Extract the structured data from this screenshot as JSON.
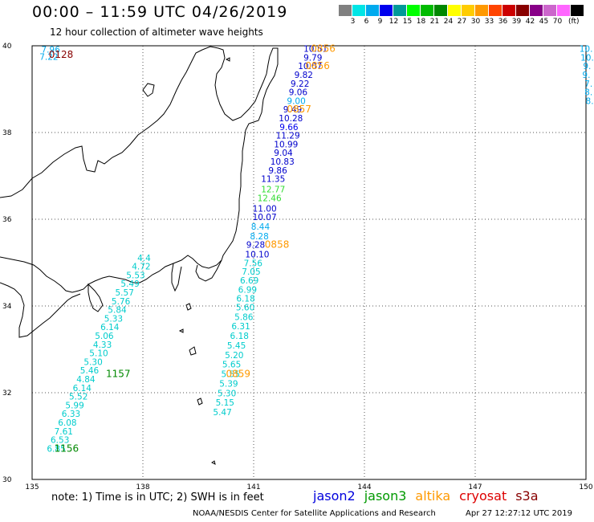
{
  "header": {
    "title": "00:00 – 11:59 UTC 04/26/2019",
    "subtitle": "12 hour collection of altimeter wave heights"
  },
  "legend": {
    "colors": [
      "#808080",
      "#00e5e5",
      "#00aaee",
      "#0000ee",
      "#009999",
      "#00ff00",
      "#00bb00",
      "#008800",
      "#ffff00",
      "#ffcc00",
      "#ff9900",
      "#ff4400",
      "#cc0000",
      "#880000",
      "#880088",
      "#cc66cc",
      "#ff66ff",
      "#000000"
    ],
    "labels": [
      "3",
      "6",
      "9",
      "12",
      "15",
      "18",
      "21",
      "24",
      "27",
      "30",
      "33",
      "36",
      "39",
      "42",
      "45",
      "70"
    ],
    "unit": "(ft)"
  },
  "map": {
    "lon_range": [
      135,
      150
    ],
    "lat_range": [
      30,
      40
    ],
    "lon_ticks": [
      "135",
      "138",
      "141",
      "144",
      "147",
      "150"
    ],
    "lat_ticks": [
      "30",
      "32",
      "34",
      "36",
      "38",
      "40"
    ],
    "grid": true
  },
  "satellite_colors": {
    "jason2": "#0000dd",
    "jason3": "#009900",
    "altika": "#ff9900",
    "cryosat": "#dd0000",
    "s3a": "#880000"
  },
  "tracks": [
    {
      "name": "jason3-0128",
      "color": "#00aaee",
      "time_label": {
        "text": "0128",
        "color": "#880000",
        "lon": 135.45,
        "lat": 39.72
      },
      "points": [
        {
          "v": "7.96",
          "lon": 135.25,
          "lat": 39.84
        },
        {
          "v": "7.22",
          "lon": 135.2,
          "lat": 39.68
        }
      ]
    },
    {
      "name": "east-edge",
      "color": "#00aaee",
      "points": [
        {
          "v": "10.",
          "lon": 149.82,
          "lat": 39.86
        },
        {
          "v": "10.",
          "lon": 149.85,
          "lat": 39.66
        },
        {
          "v": "9.",
          "lon": 149.92,
          "lat": 39.46
        },
        {
          "v": "9.",
          "lon": 149.9,
          "lat": 39.26
        },
        {
          "v": "7.",
          "lon": 149.96,
          "lat": 39.06
        },
        {
          "v": "8.",
          "lon": 149.96,
          "lat": 38.86
        },
        {
          "v": "8.",
          "lon": 149.99,
          "lat": 38.66
        }
      ]
    },
    {
      "name": "altika-north",
      "color": "#0000cc",
      "points": [
        {
          "v": "10.51",
          "lon": 142.35,
          "lat": 39.86
        },
        {
          "v": "9.79",
          "lon": 142.35,
          "lat": 39.66
        },
        {
          "v": "10.07",
          "lon": 142.2,
          "lat": 39.46
        },
        {
          "v": "9.82",
          "lon": 142.1,
          "lat": 39.26
        },
        {
          "v": "9.22",
          "lon": 142.0,
          "lat": 39.06
        },
        {
          "v": "9.06",
          "lon": 141.95,
          "lat": 38.86
        },
        {
          "v": "9.00",
          "lon": 141.9,
          "lat": 38.66
        },
        {
          "v": "9.49",
          "lon": 141.8,
          "lat": 38.46
        },
        {
          "v": "10.28",
          "lon": 141.68,
          "lat": 38.26
        },
        {
          "v": "9.66",
          "lon": 141.7,
          "lat": 38.06
        },
        {
          "v": "11.29",
          "lon": 141.6,
          "lat": 37.86
        },
        {
          "v": "10.99",
          "lon": 141.55,
          "lat": 37.66
        },
        {
          "v": "9.04",
          "lon": 141.55,
          "lat": 37.46
        },
        {
          "v": "10.83",
          "lon": 141.45,
          "lat": 37.26
        },
        {
          "v": "9.86",
          "lon": 141.4,
          "lat": 37.06
        },
        {
          "v": "11.35",
          "lon": 141.2,
          "lat": 36.86
        },
        {
          "v": "12.77",
          "lon": 141.2,
          "lat": 36.62
        },
        {
          "v": "12.46",
          "lon": 141.1,
          "lat": 36.42
        },
        {
          "v": "11.00",
          "lon": 140.97,
          "lat": 36.18
        },
        {
          "v": "10.07",
          "lon": 140.97,
          "lat": 35.98
        },
        {
          "v": "8.44",
          "lon": 140.93,
          "lat": 35.76
        },
        {
          "v": "8.28",
          "lon": 140.9,
          "lat": 35.54
        },
        {
          "v": "9.28",
          "lon": 140.8,
          "lat": 35.34
        },
        {
          "v": "10.10",
          "lon": 140.77,
          "lat": 35.12
        }
      ],
      "colors_by_index": {
        "6": "#00aaee",
        "9": "#0000ee",
        "16": "#33dd33",
        "17": "#33dd33",
        "20": "#00aaee",
        "21": "#00aaee"
      }
    },
    {
      "name": "altika-south",
      "color": "#00cccc",
      "points": [
        {
          "v": "7.56",
          "lon": 140.73,
          "lat": 34.92
        },
        {
          "v": "7.05",
          "lon": 140.68,
          "lat": 34.72
        },
        {
          "v": "6.69",
          "lon": 140.63,
          "lat": 34.52
        },
        {
          "v": "6.99",
          "lon": 140.58,
          "lat": 34.31
        },
        {
          "v": "6.18",
          "lon": 140.53,
          "lat": 34.1
        },
        {
          "v": "5.60",
          "lon": 140.52,
          "lat": 33.9
        },
        {
          "v": "5.86",
          "lon": 140.48,
          "lat": 33.68
        },
        {
          "v": "6.31",
          "lon": 140.4,
          "lat": 33.46
        },
        {
          "v": "6.18",
          "lon": 140.36,
          "lat": 33.24
        },
        {
          "v": "5.45",
          "lon": 140.28,
          "lat": 33.02
        },
        {
          "v": "5.20",
          "lon": 140.22,
          "lat": 32.8
        },
        {
          "v": "5.65",
          "lon": 140.15,
          "lat": 32.58
        },
        {
          "v": "5.55",
          "lon": 140.12,
          "lat": 32.36
        },
        {
          "v": "5.39",
          "lon": 140.07,
          "lat": 32.14
        },
        {
          "v": "5.30",
          "lon": 140.02,
          "lat": 31.92
        },
        {
          "v": "5.15",
          "lon": 139.97,
          "lat": 31.7
        },
        {
          "v": "5.47",
          "lon": 139.9,
          "lat": 31.48
        }
      ]
    },
    {
      "name": "jason3-1157",
      "color": "#00cccc",
      "time_label": {
        "text": "1157",
        "color": "#008800",
        "lon": 137.0,
        "lat": 32.36
      },
      "points": [
        {
          "v": "4.4",
          "lon": 137.85,
          "lat": 35.04
        },
        {
          "v": "4.72",
          "lon": 137.7,
          "lat": 34.84
        },
        {
          "v": "5.53",
          "lon": 137.55,
          "lat": 34.64
        },
        {
          "v": "5.49",
          "lon": 137.4,
          "lat": 34.44
        },
        {
          "v": "5.57",
          "lon": 137.25,
          "lat": 34.24
        },
        {
          "v": "5.76",
          "lon": 137.15,
          "lat": 34.04
        },
        {
          "v": "5.84",
          "lon": 137.05,
          "lat": 33.84
        },
        {
          "v": "5.33",
          "lon": 136.95,
          "lat": 33.64
        },
        {
          "v": "6.14",
          "lon": 136.85,
          "lat": 33.44
        },
        {
          "v": "5.06",
          "lon": 136.7,
          "lat": 33.24
        },
        {
          "v": "4.33",
          "lon": 136.65,
          "lat": 33.04
        },
        {
          "v": "5.10",
          "lon": 136.55,
          "lat": 32.84
        },
        {
          "v": "5.30",
          "lon": 136.4,
          "lat": 32.64
        },
        {
          "v": "5.46",
          "lon": 136.3,
          "lat": 32.44
        },
        {
          "v": "4.84",
          "lon": 136.2,
          "lat": 32.24
        },
        {
          "v": "6.14",
          "lon": 136.1,
          "lat": 32.04
        },
        {
          "v": "5.52",
          "lon": 136.0,
          "lat": 31.84
        },
        {
          "v": "5.99",
          "lon": 135.9,
          "lat": 31.64
        },
        {
          "v": "6.33",
          "lon": 135.8,
          "lat": 31.44
        },
        {
          "v": "6.08",
          "lon": 135.7,
          "lat": 31.24
        },
        {
          "v": "7.61",
          "lon": 135.6,
          "lat": 31.04
        },
        {
          "v": "6.53",
          "lon": 135.5,
          "lat": 30.84
        },
        {
          "v": "6.85",
          "lon": 135.4,
          "lat": 30.64
        }
      ]
    }
  ],
  "time_labels": [
    {
      "text": "0856",
      "color": "#ff9900",
      "lon": 142.55,
      "lat": 39.86
    },
    {
      "text": "0856",
      "color": "#ff9900",
      "lon": 142.4,
      "lat": 39.46
    },
    {
      "text": "0857",
      "color": "#ff9900",
      "lon": 141.9,
      "lat": 38.46
    },
    {
      "text": "0858",
      "color": "#ff9900",
      "lon": 141.3,
      "lat": 35.34
    },
    {
      "text": "0859",
      "color": "#ff9900",
      "lon": 140.25,
      "lat": 32.36
    },
    {
      "text": "1156",
      "color": "#008800",
      "lon": 135.6,
      "lat": 30.64
    }
  ],
  "footer": {
    "note": "note:  1) Time is in UTC;  2) SWH is in feet",
    "satellites": [
      "jason2",
      "jason3",
      "altika",
      "cryosat",
      "s3a"
    ],
    "credit": "NOAA/NESDIS Center for Satellite Applications and Research",
    "timestamp": "Apr 27 12:27:12 UTC 2019"
  }
}
